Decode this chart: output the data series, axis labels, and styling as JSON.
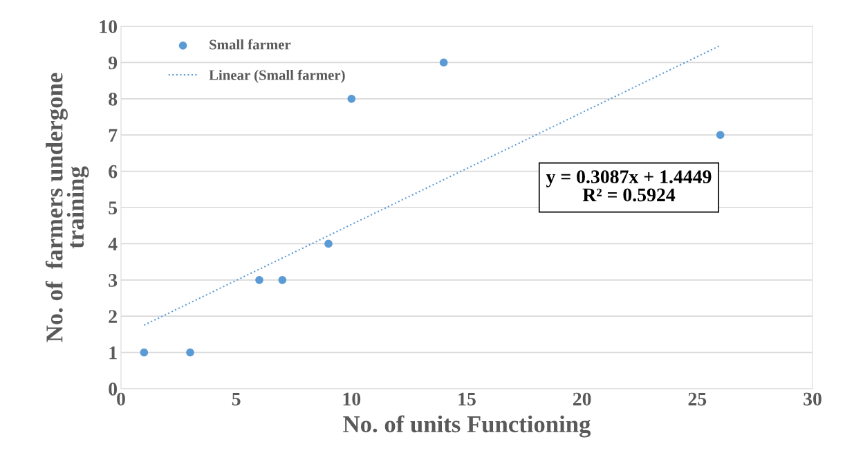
{
  "chart_data": {
    "type": "scatter",
    "xlabel": "No. of units Functioning",
    "ylabel": "No. of  farmers undergone\ntraining",
    "x": [
      1,
      3,
      6,
      7,
      9,
      10,
      14,
      26
    ],
    "series": [
      {
        "name": "Small farmer",
        "color": "#5b9bd5",
        "values": [
          1,
          1,
          3,
          3,
          4,
          8,
          9,
          7
        ],
        "marker": "circle"
      },
      {
        "name": "Linear (Small farmer)",
        "type": "line",
        "color": "#5b9bd5",
        "x": [
          1,
          26
        ],
        "values": [
          1.7536,
          9.4711
        ],
        "line_style": "dotted",
        "marker": "none"
      }
    ],
    "annotations": [
      "y = 0.3087x + 1.4449\nR² = 0.5924"
    ],
    "xlim": [
      0,
      30
    ],
    "xticks": [
      0,
      5,
      10,
      15,
      20,
      25,
      30
    ],
    "ylim": [
      0,
      10
    ],
    "yticks": [
      0,
      1,
      2,
      3,
      4,
      5,
      6,
      7,
      8,
      9,
      10
    ],
    "grid": "y",
    "legend": "top left"
  }
}
